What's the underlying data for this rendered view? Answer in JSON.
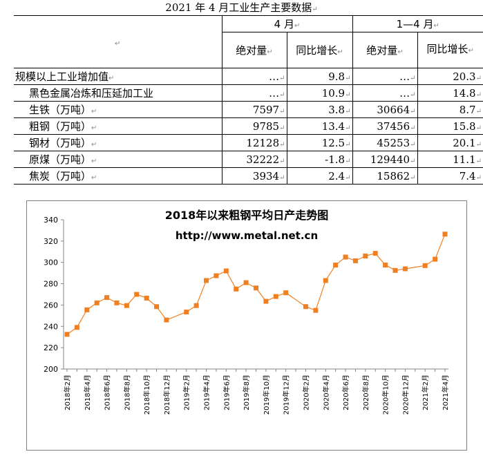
{
  "doc_title": "2021 年 4 月工业生产主要数据",
  "table": {
    "corner_mark": "↵",
    "group_headers": [
      "4 月",
      "1—4 月"
    ],
    "col_headers": [
      "绝对量",
      "同比增长",
      "绝对量",
      "同比增长"
    ],
    "rows": [
      {
        "label": "规模以上工业增加值",
        "v1": "…",
        "v2": "9.8",
        "v3": "…",
        "v4": "20.3"
      },
      {
        "label": "黑色金属冶炼和压延加工业",
        "v1": "…",
        "v2": "10.9",
        "v3": "…",
        "v4": "14.8"
      },
      {
        "label": "生铁（万吨）",
        "v1": "7597",
        "v2": "3.8",
        "v3": "30664",
        "v4": "8.7"
      },
      {
        "label": "粗钢（万吨）",
        "v1": "9785",
        "v2": "13.4",
        "v3": "37456",
        "v4": "15.8"
      },
      {
        "label": "钢材（万吨）",
        "v1": "12128",
        "v2": "12.5",
        "v3": "45253",
        "v4": "20.1"
      },
      {
        "label": "原煤（万吨）",
        "v1": "32222",
        "v2": "-1.8",
        "v3": "129440",
        "v4": "11.1"
      },
      {
        "label": "焦炭（万吨）",
        "v1": "3934",
        "v2": "2.4",
        "v3": "15862",
        "v4": "7.4"
      }
    ]
  },
  "chart_data": {
    "type": "line",
    "title": "2018年以来粗钢平均日产走势图",
    "subtitle": "http://www.metal.net.cn",
    "ylim": [
      200,
      340
    ],
    "yticks": [
      200,
      220,
      240,
      260,
      280,
      300,
      320,
      340
    ],
    "xtick_labels": [
      "2018年2月",
      "2018年4月",
      "2018年6月",
      "2018年8月",
      "2018年10月",
      "2018年12月",
      "2019年2月",
      "2019年4月",
      "2019年6月",
      "2019年8月",
      "2019年10月",
      "2019年12月",
      "2020年2月",
      "2020年4月",
      "2020年6月",
      "2020年8月",
      "2020年10月",
      "2020年12月",
      "2021年2月",
      "2021年4月"
    ],
    "x": [
      "2018-02",
      "2018-03",
      "2018-04",
      "2018-05",
      "2018-06",
      "2018-07",
      "2018-08",
      "2018-09",
      "2018-10",
      "2018-11",
      "2018-12",
      "2019-02",
      "2019-03",
      "2019-04",
      "2019-05",
      "2019-06",
      "2019-07",
      "2019-08",
      "2019-09",
      "2019-10",
      "2019-11",
      "2019-12",
      "2020-02",
      "2020-03",
      "2020-04",
      "2020-05",
      "2020-06",
      "2020-07",
      "2020-08",
      "2020-09",
      "2020-10",
      "2020-11",
      "2020-12",
      "2021-02",
      "2021-03",
      "2021-04"
    ],
    "xpos": [
      0,
      1,
      2,
      3,
      4,
      5,
      6,
      7,
      8,
      9,
      10,
      12,
      13,
      14,
      15,
      16,
      17,
      18,
      19,
      20,
      21,
      22,
      24,
      25,
      26,
      27,
      28,
      29,
      30,
      31,
      32,
      33,
      34,
      36,
      37,
      38
    ],
    "values": [
      232.5,
      239,
      255.5,
      262,
      267,
      262,
      259.5,
      270,
      266.5,
      258.5,
      246,
      253.5,
      259.5,
      283,
      287.5,
      292,
      275,
      281,
      276,
      263.5,
      268,
      271.5,
      258.5,
      255,
      283,
      297.5,
      305,
      301.5,
      306,
      308.5,
      297.5,
      292.5,
      294,
      297,
      303,
      326.5
    ],
    "color": "#f07f21"
  }
}
